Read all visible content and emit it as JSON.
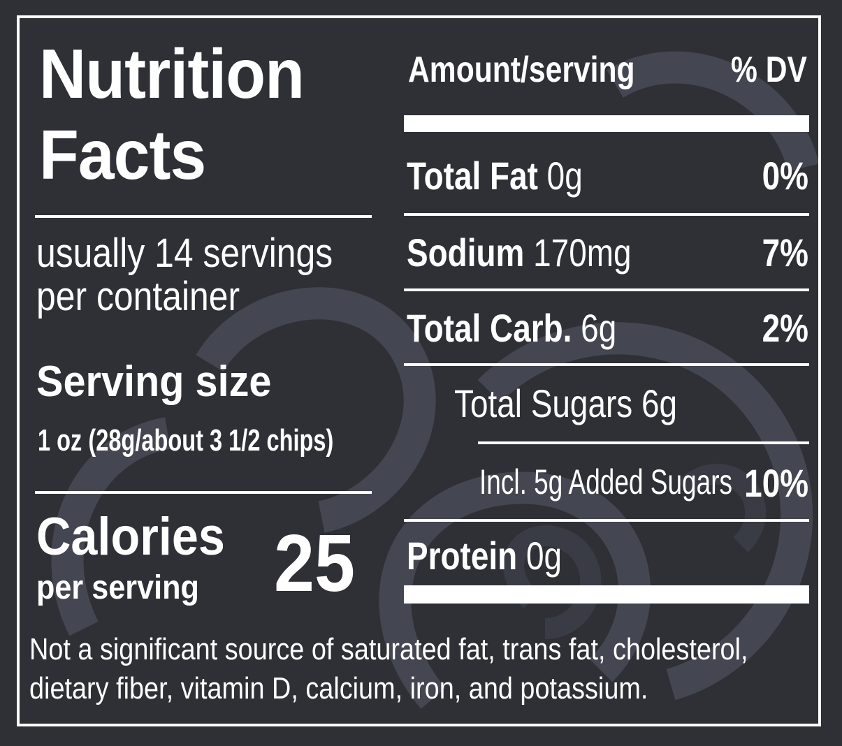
{
  "colors": {
    "background": "#2f3036",
    "foreground": "#ffffff",
    "art": "#4a4c57"
  },
  "title": {
    "line1": "Nutrition",
    "line2": "Facts"
  },
  "servings": {
    "line1": "usually 14 servings",
    "line2": "per container"
  },
  "serving_size": {
    "label": "Serving size",
    "value": "1 oz (28g/about 3 1/2 chips)"
  },
  "calories": {
    "label": "Calories",
    "sublabel": "per serving",
    "value": "25"
  },
  "header": {
    "amount": "Amount/serving",
    "dv": "% DV"
  },
  "nutrients": [
    {
      "name": "Total Fat",
      "amount": "0g",
      "dv": "0%"
    },
    {
      "name": "Sodium",
      "amount": "170mg",
      "dv": "7%"
    },
    {
      "name": "Total Carb.",
      "amount": "6g",
      "dv": "2%"
    }
  ],
  "sugars": {
    "total": "Total Sugars 6g",
    "added": "Incl. 5g Added Sugars",
    "added_dv": "10%"
  },
  "protein": {
    "name": "Protein",
    "amount": "0g"
  },
  "footnote": {
    "line1": "Not a significant source of saturated fat, trans fat, cholesterol,",
    "line2": "dietary fiber, vitamin D, calcium, iron, and potassium."
  }
}
